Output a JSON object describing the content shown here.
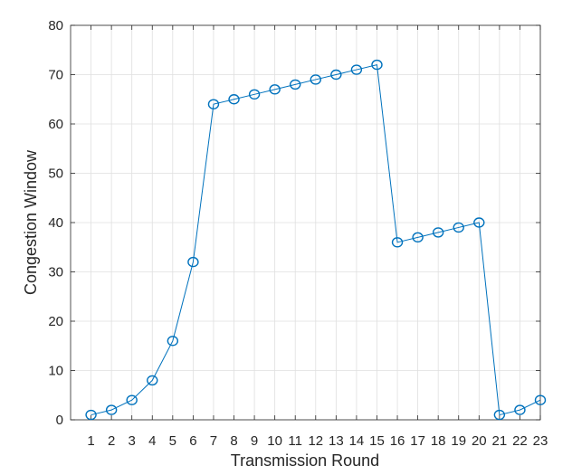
{
  "chart_data": {
    "type": "line",
    "xlabel": "Transmission Round",
    "ylabel": "Congestion Window",
    "xlim": [
      0,
      23
    ],
    "ylim": [
      0,
      80
    ],
    "x_ticks": [
      1,
      2,
      3,
      4,
      5,
      6,
      7,
      8,
      9,
      10,
      11,
      12,
      13,
      14,
      15,
      16,
      17,
      18,
      19,
      20,
      21,
      22,
      23
    ],
    "y_ticks": [
      0,
      10,
      20,
      30,
      40,
      50,
      60,
      70,
      80
    ],
    "grid": true,
    "marker": "circle",
    "colors": {
      "series": "#0072BD",
      "grid": "#DFDFDF",
      "axis": "#262626"
    },
    "series": [
      {
        "x": [
          1,
          2,
          3,
          4,
          5,
          6,
          7,
          8,
          9,
          10,
          11,
          12,
          13,
          14,
          15,
          16,
          17,
          18,
          19,
          20,
          21,
          22,
          23
        ],
        "values": [
          1,
          2,
          4,
          8,
          16,
          32,
          64,
          65,
          66,
          67,
          68,
          69,
          70,
          71,
          72,
          36,
          37,
          38,
          39,
          40,
          1,
          2,
          4
        ]
      }
    ]
  }
}
